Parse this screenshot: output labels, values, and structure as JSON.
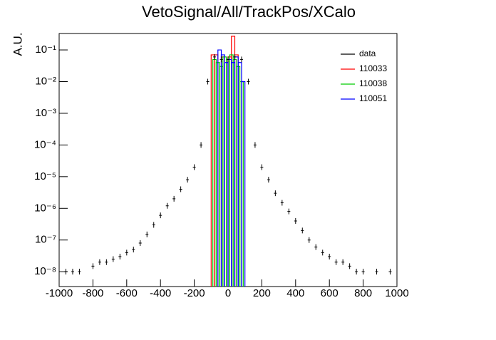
{
  "chart_data": {
    "type": "log-histogram",
    "title": "VetoSignal/All/TrackPos/XCalo",
    "y_label": "A.U.",
    "log_y": true,
    "legend": "top-right",
    "xlim": [
      -1000,
      1000
    ],
    "xticks": [
      -1000,
      -800,
      -600,
      -400,
      -200,
      0,
      200,
      400,
      600,
      800,
      1000
    ],
    "ylim": [
      3.4e-09,
      0.33
    ],
    "yticks": [
      {
        "value": 1e-08,
        "label": "10⁻⁸"
      },
      {
        "value": 1e-07,
        "label": "10⁻⁷"
      },
      {
        "value": 1e-06,
        "label": "10⁻⁶"
      },
      {
        "value": 1e-05,
        "label": "10⁻⁵"
      },
      {
        "value": 0.0001,
        "label": "10⁻⁴"
      },
      {
        "value": 0.001,
        "label": "10⁻³"
      },
      {
        "value": 0.01,
        "label": "10⁻²"
      },
      {
        "value": 0.1,
        "label": "10⁻¹"
      }
    ],
    "points": {
      "name": "data",
      "color": "#000000",
      "x": [
        -960,
        -920,
        -880,
        -840,
        -800,
        -760,
        -720,
        -680,
        -640,
        -600,
        -560,
        -520,
        -480,
        -440,
        -400,
        -360,
        -320,
        -280,
        -240,
        -200,
        -160,
        -120,
        -80,
        -40,
        0,
        40,
        80,
        120,
        160,
        200,
        240,
        280,
        320,
        360,
        400,
        440,
        480,
        520,
        560,
        600,
        640,
        680,
        720,
        760,
        800,
        840,
        880,
        920,
        960
      ],
      "values": [
        1e-08,
        1e-08,
        1e-08,
        null,
        1.5e-08,
        2e-08,
        2e-08,
        2.5e-08,
        3e-08,
        4e-08,
        5e-08,
        8e-08,
        1.5e-07,
        3e-07,
        6e-07,
        1.2e-06,
        2e-06,
        4e-06,
        8e-06,
        2e-05,
        0.0001,
        0.01,
        0.06,
        0.05,
        0.05,
        0.06,
        0.05,
        0.01,
        0.0001,
        2e-05,
        8e-06,
        3e-06,
        1.5e-06,
        8e-07,
        4e-07,
        2e-07,
        1e-07,
        6e-08,
        4e-08,
        3e-08,
        2e-08,
        2e-08,
        1.5e-08,
        1e-08,
        1e-08,
        null,
        1e-08,
        null,
        1e-08
      ]
    },
    "series": [
      {
        "name": "110033",
        "color": "#ff0000",
        "bins": [
          -100,
          -80,
          -60,
          -40,
          -20,
          0,
          20,
          40,
          60,
          80
        ],
        "values": [
          0.07,
          0.07,
          null,
          0.06,
          null,
          0.06,
          0.27,
          0.07,
          null
        ]
      },
      {
        "name": "110038",
        "color": "#00cc00",
        "bins": [
          -90,
          -70,
          -50,
          -30,
          -10,
          10,
          30,
          50,
          70,
          90
        ],
        "values": [
          0.05,
          0.04,
          0.03,
          0.06,
          0.05,
          0.07,
          0.05,
          0.03,
          0.01
        ]
      },
      {
        "name": "110051",
        "color": "#0000ff",
        "bins": [
          -60,
          -40,
          -20,
          0,
          20,
          40,
          60,
          80,
          100,
          120,
          140
        ],
        "values": [
          0.1,
          0.07,
          0.04,
          0.05,
          0.04,
          0.06,
          0.04,
          0.01,
          null,
          null
        ]
      }
    ]
  }
}
